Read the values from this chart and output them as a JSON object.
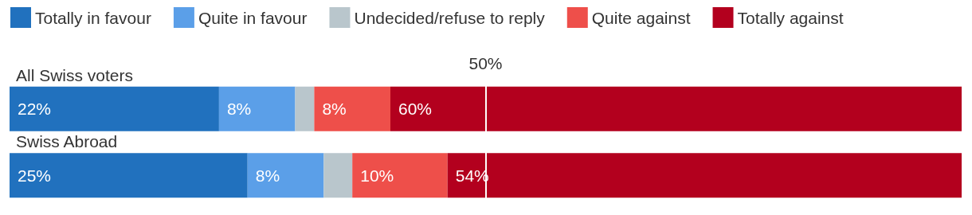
{
  "chart_data": {
    "type": "bar",
    "orientation": "horizontal",
    "stacked": true,
    "categories": [
      "All Swiss voters",
      "Swiss Abroad"
    ],
    "xlim": [
      0,
      100
    ],
    "tick_labels": "y",
    "legend": "top left",
    "series": [
      {
        "name": "Totally in favour",
        "color": "#2171be",
        "values": [
          22,
          25
        ],
        "value_labels": [
          "22%",
          "25%"
        ]
      },
      {
        "name": "Quite in favour",
        "color": "#5b9fe8",
        "values": [
          8,
          8
        ],
        "value_labels": [
          "8%",
          "8%"
        ]
      },
      {
        "name": "Undecided/refuse to reply",
        "color": "#b9c6cc",
        "values": [
          2,
          3
        ],
        "value_labels": [
          null,
          null
        ]
      },
      {
        "name": "Quite against",
        "color": "#ee4f4a",
        "values": [
          8,
          10
        ],
        "value_labels": [
          "8%",
          "10%"
        ]
      },
      {
        "name": "Totally against",
        "color": "#b3001e",
        "values": [
          60,
          54
        ],
        "value_labels": [
          "60%",
          "54%"
        ]
      }
    ],
    "ref_lines": [
      {
        "axis": "x",
        "value": 50,
        "label": "50%",
        "color": "#ffffff"
      }
    ]
  }
}
